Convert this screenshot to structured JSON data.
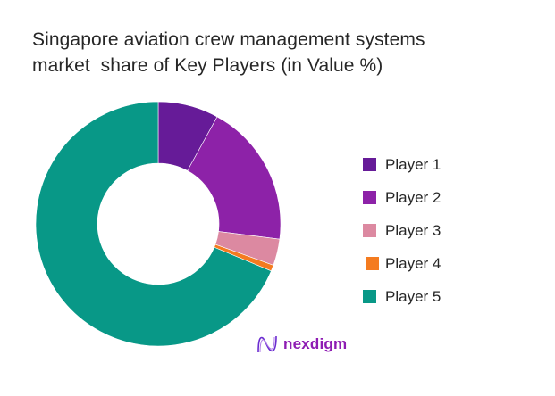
{
  "title_lines": [
    "Singapore aviation crew management systems",
    "market  share of Key Players (in Value %)"
  ],
  "logo": {
    "icon": "nexdigm-wave-icon",
    "text": "nexdigm",
    "color": "#8e1cb3"
  },
  "legend": [
    {
      "label": "Player 1",
      "color": "#661b98"
    },
    {
      "label": "Player 2",
      "color": "#8d22a8"
    },
    {
      "label": "Player 3",
      "color": "#dc89a1"
    },
    {
      "label": "Player 4",
      "color": "#f47b20"
    },
    {
      "label": "Player 5",
      "color": "#089887"
    }
  ],
  "chart_data": {
    "type": "pie",
    "subtype": "donut",
    "title": "Singapore aviation crew management systems market  share of Key Players (in Value %)",
    "categories": [
      "Player 1",
      "Player 2",
      "Player 3",
      "Player 4",
      "Player 5"
    ],
    "values": [
      8,
      19,
      3.5,
      0.8,
      68.7
    ],
    "colors": [
      "#661b98",
      "#8d22a8",
      "#dc89a1",
      "#f47b20",
      "#089887"
    ],
    "start_angle": "12 o'clock",
    "direction": "clockwise",
    "legend_position": "right",
    "data_labels": false
  }
}
